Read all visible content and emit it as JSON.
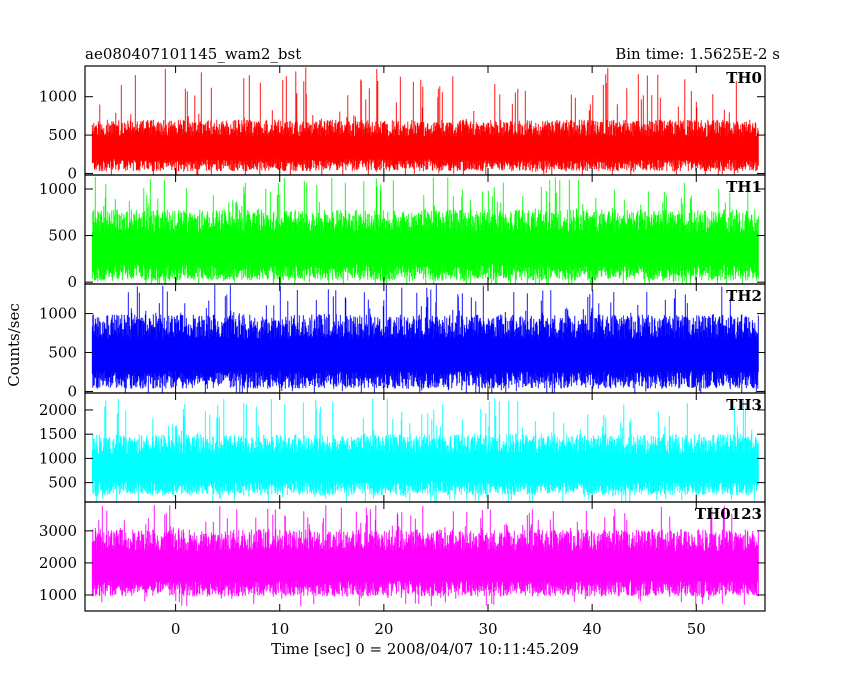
{
  "header": {
    "title": "ae080407101145_wam2_bst",
    "bin_time": "Bin time: 1.5625E-2 s"
  },
  "chart_data": {
    "type": "line",
    "xlabel": "Time [sec] 0 = 2008/04/07 10:11:45.209",
    "ylabel": "Counts/sec",
    "xlim": [
      -8.7,
      56.6
    ],
    "data_x_range": [
      -8,
      56
    ],
    "x_ticks": [
      0,
      10,
      20,
      30,
      40,
      50
    ],
    "panels": [
      {
        "name": "TH0",
        "color": "#ff0000",
        "ylim": [
          -20,
          1400
        ],
        "y_ticks": [
          0,
          500,
          1000
        ],
        "mean": 460,
        "low": 60,
        "high": 700,
        "peak": 1390
      },
      {
        "name": "TH1",
        "color": "#00ff00",
        "ylim": [
          -20,
          1150
        ],
        "y_ticks": [
          0,
          500,
          1000
        ],
        "mean": 410,
        "low": 50,
        "high": 780,
        "peak": 1130
      },
      {
        "name": "TH2",
        "color": "#0000ff",
        "ylim": [
          -20,
          1380
        ],
        "y_ticks": [
          0,
          500,
          1000
        ],
        "mean": 560,
        "low": 80,
        "high": 990,
        "peak": 1370
      },
      {
        "name": "TH3",
        "color": "#00ffff",
        "ylim": [
          100,
          2350
        ],
        "y_ticks": [
          500,
          1000,
          1500,
          2000
        ],
        "mean": 960,
        "low": 300,
        "high": 1500,
        "peak": 2250
      },
      {
        "name": "TH0123",
        "color": "#ff00ff",
        "ylim": [
          500,
          3900
        ],
        "y_ticks": [
          1000,
          2000,
          3000
        ],
        "mean": 2200,
        "low": 1050,
        "high": 3050,
        "peak": 3800
      }
    ]
  }
}
